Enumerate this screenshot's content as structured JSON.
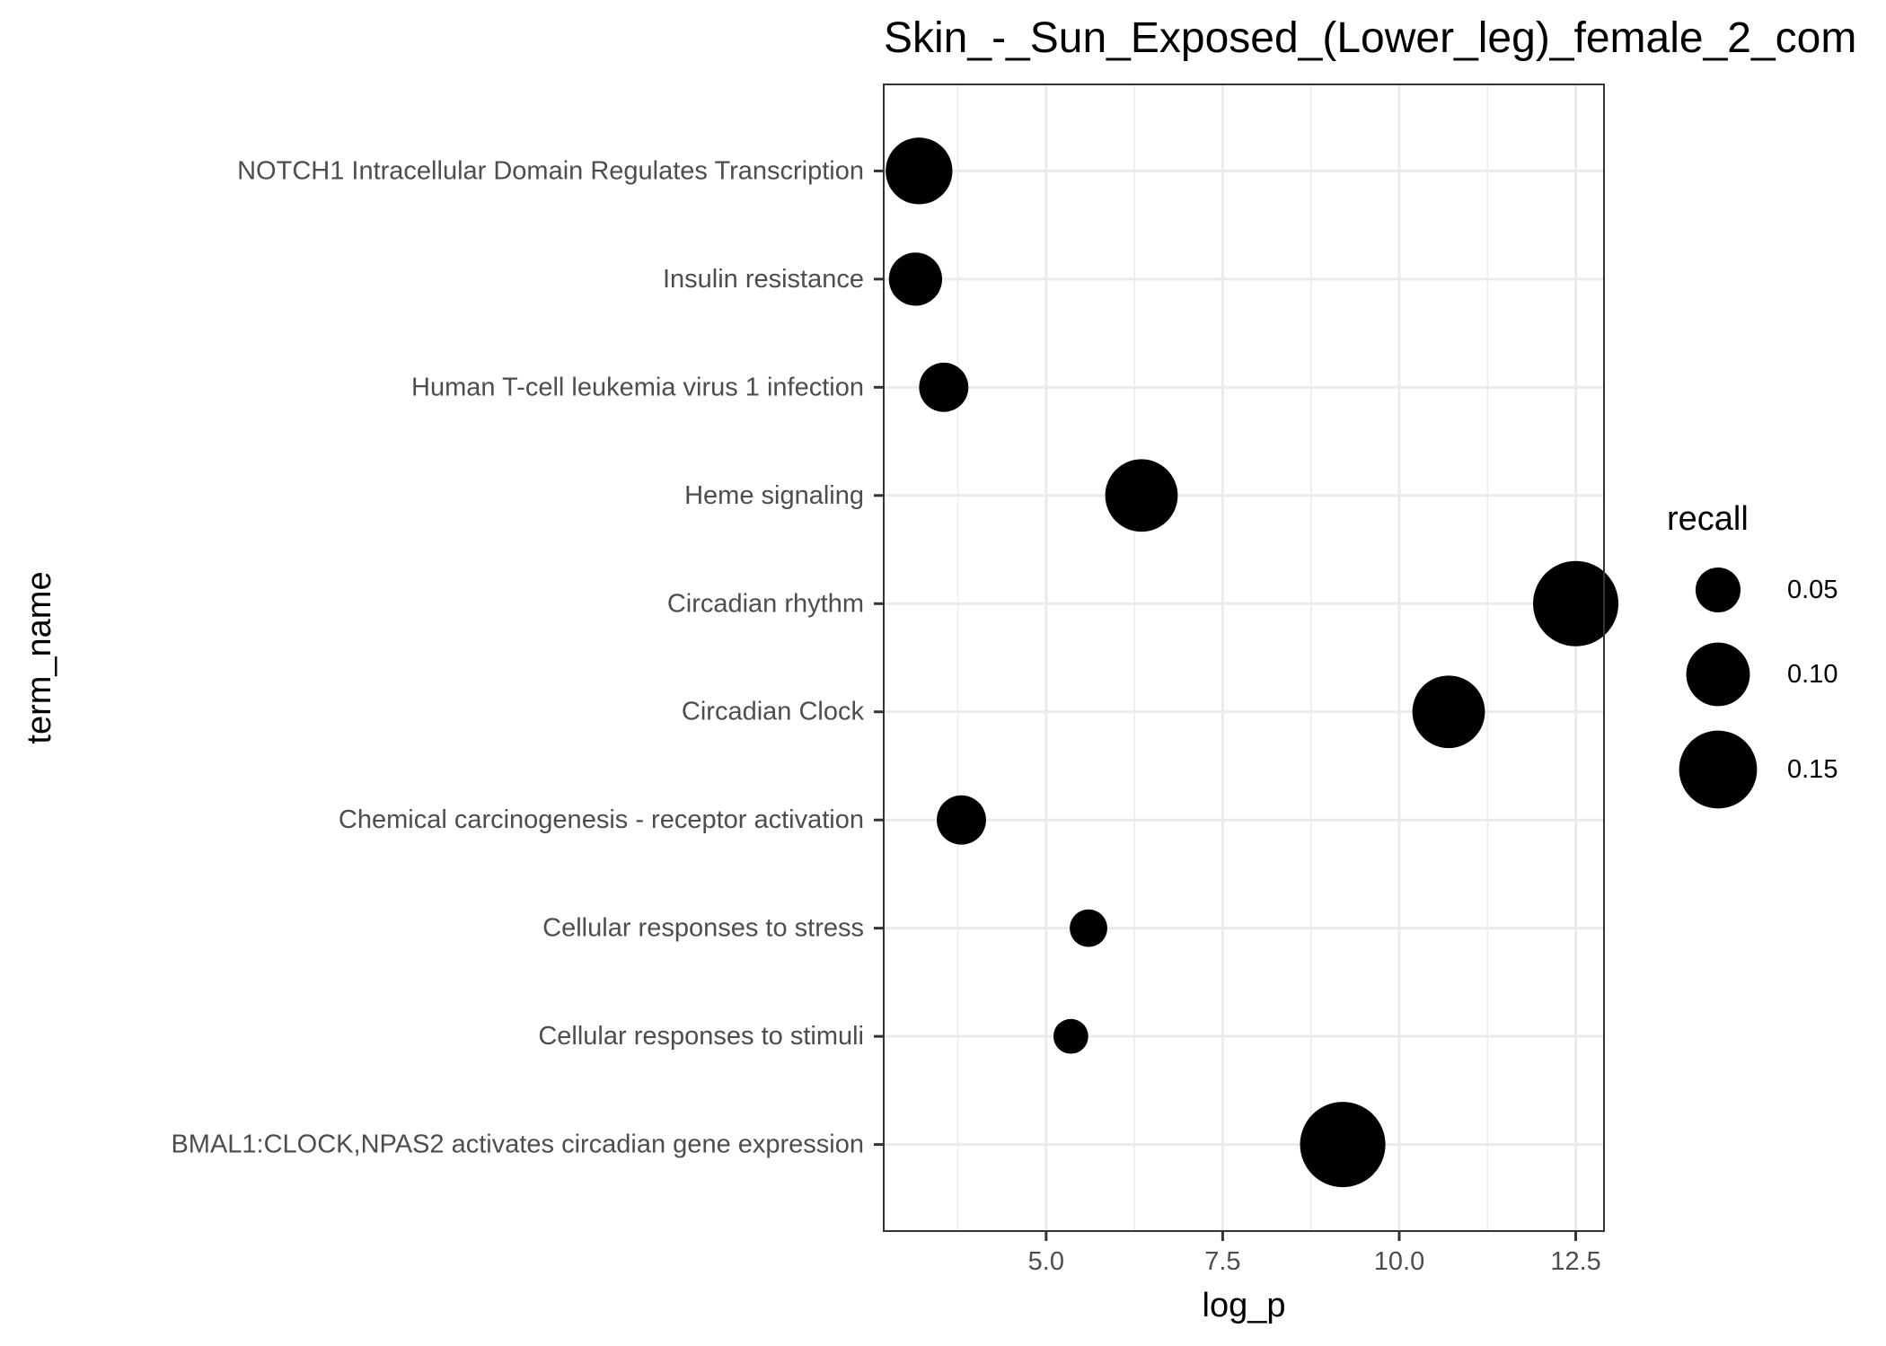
{
  "chart_data": {
    "type": "scatter",
    "title": "Skin_-_Sun_Exposed_(Lower_leg)_female_2_com",
    "xlabel": "log_p",
    "ylabel": "term_name",
    "xlim": [
      2.7,
      12.9
    ],
    "x_ticks": [
      "5.0",
      "7.5",
      "10.0",
      "12.5"
    ],
    "x_tick_values": [
      5.0,
      7.5,
      10.0,
      12.5
    ],
    "grid": true,
    "categories": [
      "NOTCH1 Intracellular Domain Regulates Transcription",
      "Insulin resistance",
      "Human T-cell leukemia virus 1 infection",
      "Heme signaling",
      "Circadian rhythm",
      "Circadian Clock",
      "Chemical carcinogenesis - receptor activation",
      "Cellular responses to stress",
      "Cellular responses to stimuli",
      "BMAL1:CLOCK,NPAS2 activates circadian gene expression"
    ],
    "points": [
      {
        "term": "NOTCH1 Intracellular Domain Regulates Transcription",
        "log_p": 3.2,
        "recall": 0.11
      },
      {
        "term": "Insulin resistance",
        "log_p": 3.15,
        "recall": 0.07
      },
      {
        "term": "Human T-cell leukemia virus 1 infection",
        "log_p": 3.55,
        "recall": 0.06
      },
      {
        "term": "Heme signaling",
        "log_p": 6.35,
        "recall": 0.13
      },
      {
        "term": "Circadian rhythm",
        "log_p": 12.5,
        "recall": 0.18
      },
      {
        "term": "Circadian Clock",
        "log_p": 10.7,
        "recall": 0.13
      },
      {
        "term": "Chemical carcinogenesis - receptor activation",
        "log_p": 3.8,
        "recall": 0.06
      },
      {
        "term": "Cellular responses to stress",
        "log_p": 5.6,
        "recall": 0.035
      },
      {
        "term": "Cellular responses to stimuli",
        "log_p": 5.35,
        "recall": 0.03
      },
      {
        "term": "BMAL1:CLOCK,NPAS2 activates circadian gene expression",
        "log_p": 9.2,
        "recall": 0.18
      }
    ],
    "legend": {
      "title": "recall",
      "placement": "right",
      "entries": [
        {
          "label": "0.05",
          "value": 0.05
        },
        {
          "label": "0.10",
          "value": 0.1
        },
        {
          "label": "0.15",
          "value": 0.15
        }
      ]
    },
    "point_color": "#000000",
    "panel_border_color": "#333333",
    "grid_color": "#ebebeb"
  }
}
